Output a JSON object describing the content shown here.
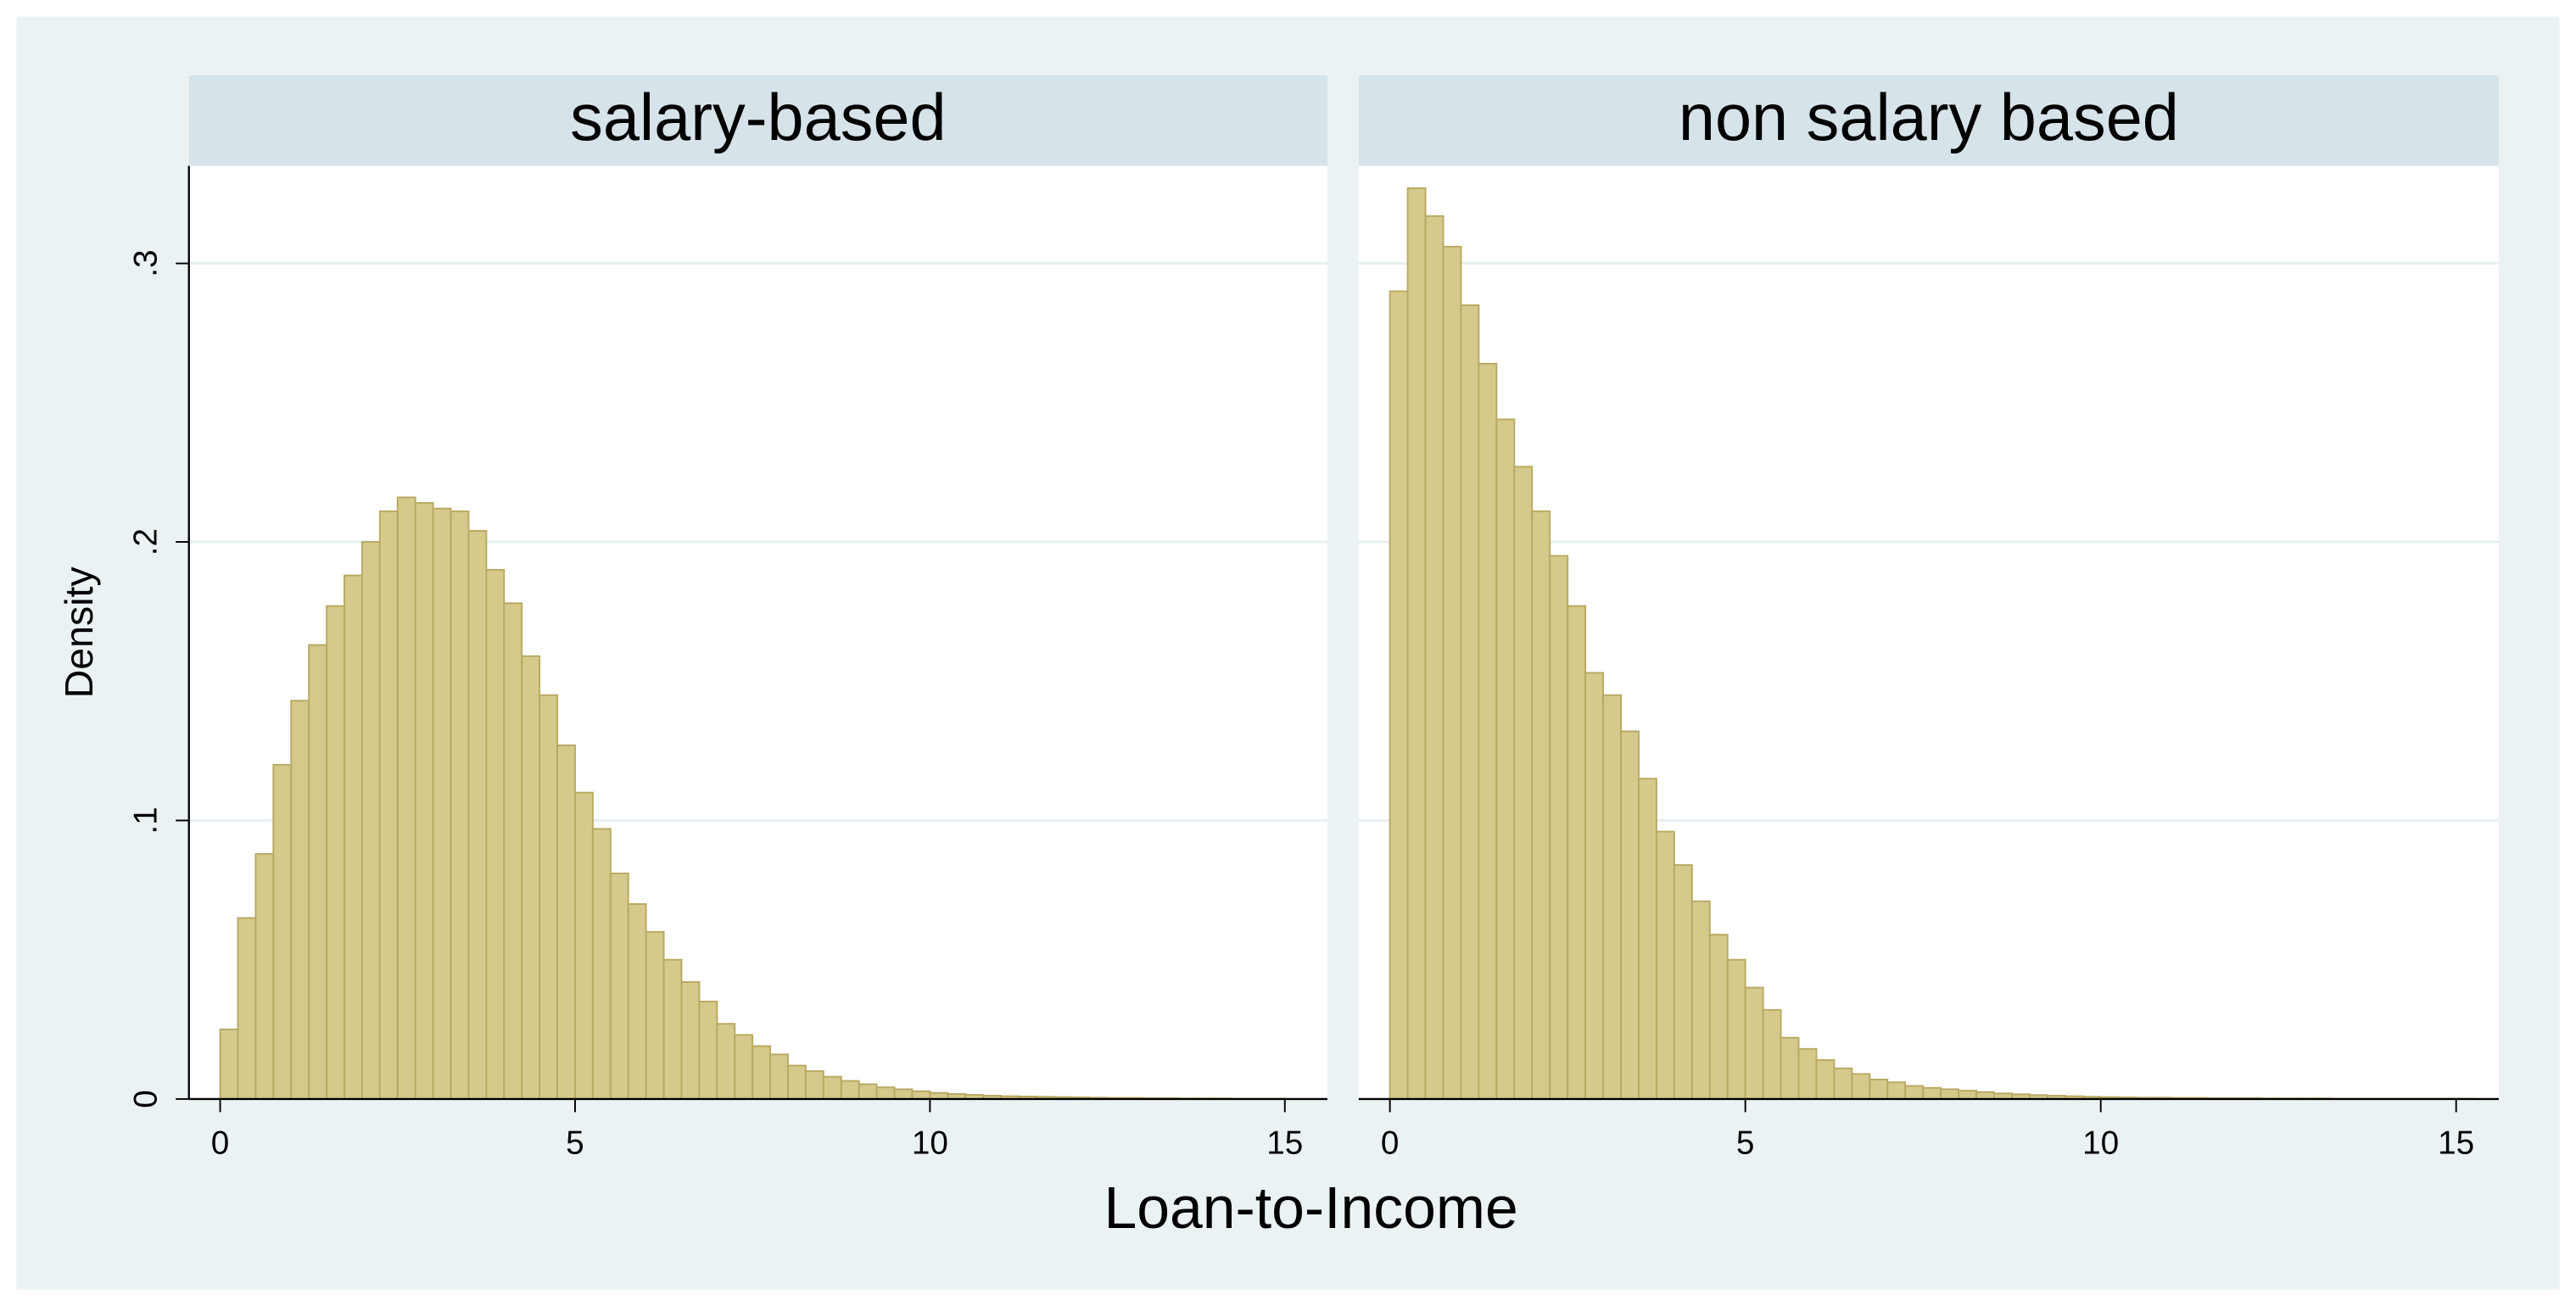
{
  "axis_titles": {
    "x": "Loan-to-Income",
    "y": "Density"
  },
  "chart_data": [
    {
      "type": "histogram",
      "title": "salary-based",
      "color": "#d5c98c",
      "edgecolor": "#b8aa62",
      "bins": [
        0,
        0.25,
        0.5,
        0.75,
        1,
        1.25,
        1.5,
        1.75,
        2,
        2.25,
        2.5,
        2.75,
        3,
        3.25,
        3.5,
        3.75,
        4,
        4.25,
        4.5,
        4.75,
        5,
        5.25,
        5.5,
        5.75,
        6,
        6.25,
        6.5,
        6.75,
        7,
        7.25,
        7.5,
        7.75,
        8,
        8.25,
        8.5,
        8.75,
        9,
        9.25,
        9.5,
        9.75,
        10,
        10.25,
        10.5,
        10.75,
        11,
        11.25,
        11.5,
        11.75,
        12,
        12.25,
        12.5,
        12.75,
        13,
        13.25,
        13.5,
        13.75,
        14,
        14.25,
        14.5,
        14.75,
        15
      ],
      "values": [
        0.025,
        0.065,
        0.088,
        0.12,
        0.143,
        0.163,
        0.177,
        0.188,
        0.2,
        0.211,
        0.216,
        0.214,
        0.212,
        0.211,
        0.204,
        0.19,
        0.178,
        0.159,
        0.145,
        0.127,
        0.11,
        0.097,
        0.081,
        0.07,
        0.06,
        0.05,
        0.042,
        0.035,
        0.027,
        0.023,
        0.019,
        0.016,
        0.012,
        0.01,
        0.008,
        0.0065,
        0.0053,
        0.0042,
        0.0035,
        0.0028,
        0.0022,
        0.0018,
        0.0015,
        0.0012,
        0.001,
        0.0009,
        0.0008,
        0.0007,
        0.0006,
        0.0005,
        0.0004,
        0.0004,
        0.0003,
        0.0003,
        0.0002,
        0.0002,
        0.0002,
        0.0001,
        0.0001,
        0.0001
      ],
      "xlim": [
        -0.44,
        15.6
      ],
      "ylim": [
        0,
        0.335
      ],
      "xticks": [
        0,
        5,
        10,
        15
      ],
      "yticks": [
        0,
        {
          "value": 0.1,
          "label": ".1"
        },
        {
          "value": 0.2,
          "label": ".2"
        },
        {
          "value": 0.3,
          "label": ".3"
        }
      ],
      "grid": true
    },
    {
      "type": "histogram",
      "title": "non salary based",
      "color": "#d5c98c",
      "edgecolor": "#b8aa62",
      "bins": [
        0,
        0.25,
        0.5,
        0.75,
        1,
        1.25,
        1.5,
        1.75,
        2,
        2.25,
        2.5,
        2.75,
        3,
        3.25,
        3.5,
        3.75,
        4,
        4.25,
        4.5,
        4.75,
        5,
        5.25,
        5.5,
        5.75,
        6,
        6.25,
        6.5,
        6.75,
        7,
        7.25,
        7.5,
        7.75,
        8,
        8.25,
        8.5,
        8.75,
        9,
        9.25,
        9.5,
        9.75,
        10,
        10.25,
        10.5,
        10.75,
        11,
        11.25,
        11.5,
        11.75,
        12,
        12.25,
        12.5,
        12.75,
        13,
        13.25,
        13.5,
        13.75,
        14,
        14.25,
        14.5,
        14.75,
        15,
        15.25
      ],
      "values": [
        0.29,
        0.327,
        0.317,
        0.306,
        0.285,
        0.264,
        0.244,
        0.227,
        0.211,
        0.195,
        0.177,
        0.153,
        0.145,
        0.132,
        0.115,
        0.096,
        0.084,
        0.071,
        0.059,
        0.05,
        0.04,
        0.032,
        0.022,
        0.018,
        0.014,
        0.011,
        0.009,
        0.007,
        0.006,
        0.0047,
        0.004,
        0.0035,
        0.003,
        0.0025,
        0.002,
        0.0017,
        0.0014,
        0.0012,
        0.001,
        0.0008,
        0.0007,
        0.0006,
        0.0005,
        0.0005,
        0.0004,
        0.0004,
        0.0003,
        0.0003,
        0.0003,
        0.0002,
        0.0002,
        0.0002,
        0.0002,
        0.0001,
        0.0001,
        0.0001,
        0.0001,
        0.0001,
        0.0001,
        0.0001,
        0.0001
      ],
      "xlim": [
        -0.44,
        15.6
      ],
      "ylim": [
        0,
        0.335
      ],
      "xticks": [
        0,
        5,
        10,
        15
      ],
      "yticks": [
        0,
        {
          "value": 0.1,
          "label": ".1"
        },
        {
          "value": 0.2,
          "label": ".2"
        },
        {
          "value": 0.3,
          "label": ".3"
        }
      ],
      "grid": true
    }
  ]
}
